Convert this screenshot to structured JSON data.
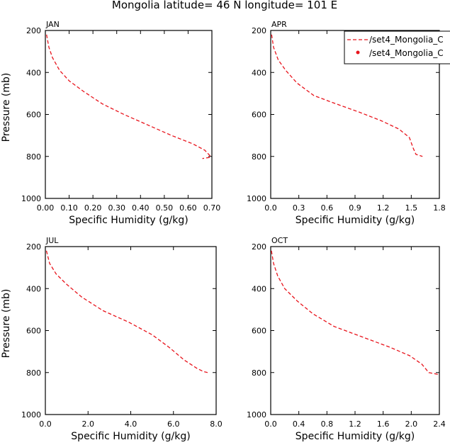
{
  "page": {
    "title": "Mongolia  latitude= 46 N longitude= 101 E"
  },
  "legend": {
    "items": [
      {
        "label": "/set4_Mongolia_C",
        "style": "dashed"
      },
      {
        "label": "/set4_Mongolia_C",
        "style": "dot"
      }
    ]
  },
  "colors": {
    "series": "#e8141c",
    "axes": "#000000"
  },
  "chart_data": [
    {
      "type": "line",
      "month": "JAN",
      "xlabel": "Specific Humidity (g/kg)",
      "ylabel": "Pressure (mb)",
      "xlim": [
        0,
        0.7
      ],
      "ylim": [
        200,
        1000
      ],
      "y_reversed": true,
      "xticks": [
        "0.00",
        "0.10",
        "0.20",
        "0.30",
        "0.40",
        "0.50",
        "0.60",
        "0.70"
      ],
      "xtick_values": [
        0,
        0.1,
        0.2,
        0.3,
        0.4,
        0.5,
        0.6,
        0.7
      ],
      "yticks": [
        "200",
        "400",
        "600",
        "800",
        "1000"
      ],
      "ytick_values": [
        200,
        400,
        600,
        800,
        1000
      ],
      "series": [
        {
          "name": "/set4_Mongolia_C",
          "style": "dashed",
          "x": [
            0.005,
            0.015,
            0.03,
            0.06,
            0.1,
            0.16,
            0.24,
            0.33,
            0.43,
            0.53,
            0.62,
            0.67,
            0.695,
            0.69,
            0.66
          ],
          "y": [
            220,
            280,
            330,
            390,
            440,
            490,
            550,
            600,
            650,
            700,
            740,
            770,
            800,
            805,
            810
          ]
        }
      ]
    },
    {
      "type": "line",
      "month": "APR",
      "xlabel": "Specific Humidity (g/kg)",
      "ylabel": "Pressure (mb)",
      "xlim": [
        0,
        1.8
      ],
      "ylim": [
        200,
        1000
      ],
      "y_reversed": true,
      "xticks": [
        "0.0",
        "0.3",
        "0.6",
        "0.9",
        "1.2",
        "1.5",
        "1.8"
      ],
      "xtick_values": [
        0,
        0.3,
        0.6,
        0.9,
        1.2,
        1.5,
        1.8
      ],
      "yticks": [
        "200",
        "400",
        "600",
        "800",
        "1000"
      ],
      "ytick_values": [
        200,
        400,
        600,
        800,
        1000
      ],
      "series": [
        {
          "name": "/set4_Mongolia_C",
          "style": "dashed",
          "x": [
            0.01,
            0.03,
            0.08,
            0.16,
            0.28,
            0.46,
            0.7,
            0.95,
            1.18,
            1.37,
            1.48,
            1.52,
            1.55,
            1.62
          ],
          "y": [
            220,
            280,
            340,
            390,
            450,
            510,
            550,
            590,
            630,
            670,
            710,
            760,
            790,
            800
          ]
        }
      ]
    },
    {
      "type": "line",
      "month": "JUL",
      "xlabel": "Specific Humidity (g/kg)",
      "ylabel": "Pressure (mb)",
      "xlim": [
        0,
        8.0
      ],
      "ylim": [
        200,
        1000
      ],
      "y_reversed": true,
      "xticks": [
        "0.0",
        "2.0",
        "4.0",
        "6.0",
        "8.0"
      ],
      "xtick_values": [
        0,
        2,
        4,
        6,
        8
      ],
      "yticks": [
        "200",
        "400",
        "600",
        "800",
        "1000"
      ],
      "ytick_values": [
        200,
        400,
        600,
        800,
        1000
      ],
      "series": [
        {
          "name": "/set4_Mongolia_C",
          "style": "dashed",
          "x": [
            0.05,
            0.2,
            0.5,
            1.0,
            1.7,
            2.7,
            3.9,
            5.0,
            5.8,
            6.5,
            7.1,
            7.4,
            7.6
          ],
          "y": [
            220,
            280,
            330,
            380,
            440,
            505,
            560,
            620,
            680,
            740,
            780,
            795,
            800
          ]
        }
      ]
    },
    {
      "type": "line",
      "month": "OCT",
      "xlabel": "Specific Humidity (g/kg)",
      "ylabel": "Pressure (mb)",
      "xlim": [
        0,
        2.4
      ],
      "ylim": [
        200,
        1000
      ],
      "y_reversed": true,
      "xticks": [
        "0.0",
        "0.4",
        "0.8",
        "1.2",
        "1.6",
        "2.0",
        "2.4"
      ],
      "xtick_values": [
        0,
        0.4,
        0.8,
        1.2,
        1.6,
        2.0,
        2.4
      ],
      "yticks": [
        "200",
        "400",
        "600",
        "800",
        "1000"
      ],
      "ytick_values": [
        200,
        400,
        600,
        800,
        1000
      ],
      "series": [
        {
          "name": "/set4_Mongolia_C",
          "style": "dashed",
          "x": [
            0.01,
            0.04,
            0.1,
            0.2,
            0.38,
            0.6,
            0.9,
            1.3,
            1.7,
            1.98,
            2.15,
            2.25,
            2.4
          ],
          "y": [
            220,
            280,
            340,
            400,
            460,
            520,
            580,
            630,
            680,
            720,
            760,
            800,
            810
          ]
        }
      ]
    }
  ]
}
